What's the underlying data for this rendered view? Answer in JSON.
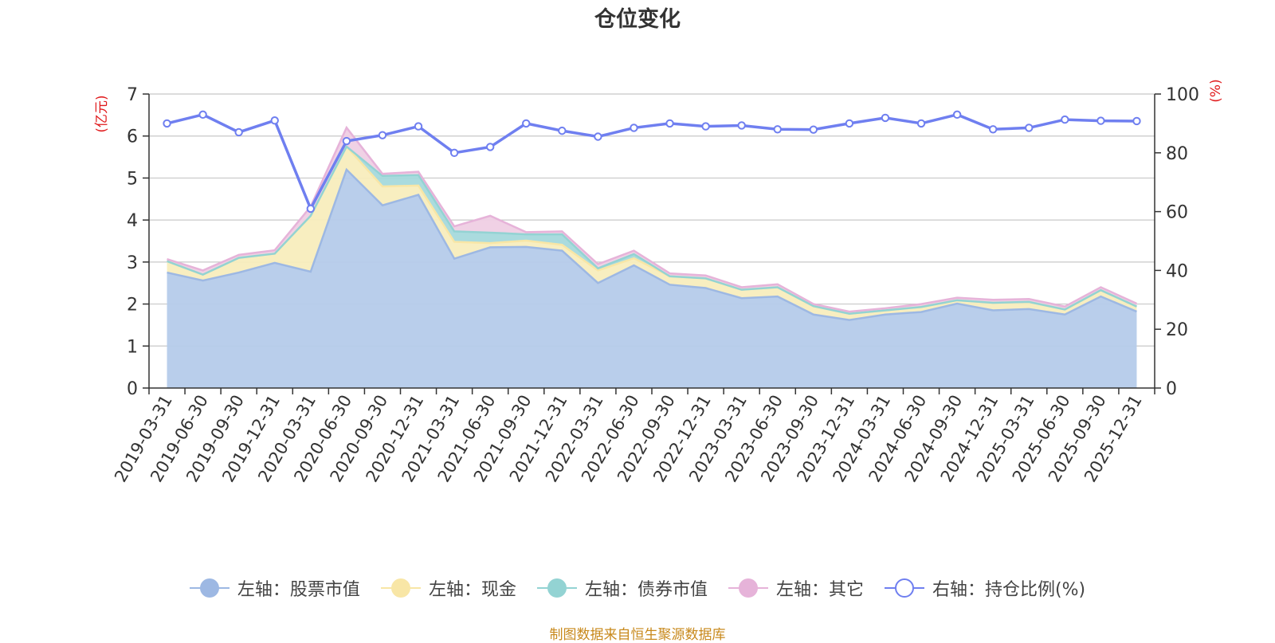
{
  "title": "仓位变化",
  "source_note": "制图数据来自恒生聚源数据库",
  "legend": [
    {
      "label": "左轴：股票市值",
      "color": "#9db8e3",
      "style": "filled"
    },
    {
      "label": "左轴：现金",
      "color": "#f8e6a6",
      "style": "filled"
    },
    {
      "label": "左轴：债券市值",
      "color": "#93d3d3",
      "style": "filled"
    },
    {
      "label": "左轴：其它",
      "color": "#e6b3d9",
      "style": "filled"
    },
    {
      "label": "右轴：持仓比例(%)",
      "color": "#6f7ff0",
      "style": "hollow"
    }
  ],
  "chart_data": {
    "type": "area",
    "title": "仓位变化",
    "left_axis": {
      "label": "(亿元)",
      "min": 0,
      "max": 7,
      "ticks": [
        0,
        1,
        2,
        3,
        4,
        5,
        6,
        7
      ]
    },
    "right_axis": {
      "label": "(%)",
      "min": 0,
      "max": 100,
      "ticks": [
        0,
        20,
        40,
        60,
        80,
        100
      ]
    },
    "categories": [
      "2019-03-31",
      "2019-06-30",
      "2019-09-30",
      "2019-12-31",
      "2020-03-31",
      "2020-06-30",
      "2020-09-30",
      "2020-12-31",
      "2021-03-31",
      "2021-06-30",
      "2021-09-30",
      "2021-12-31",
      "2022-03-31",
      "2022-06-30",
      "2022-09-30",
      "2022-12-31",
      "2023-03-31",
      "2023-06-30",
      "2023-09-30",
      "2023-12-31",
      "2024-03-31",
      "2024-06-30",
      "2024-09-30",
      "2024-12-31",
      "2025-03-31",
      "2025-06-30",
      "2025-09-30",
      "2025-12-31"
    ],
    "series": [
      {
        "name": "左轴：股票市值",
        "axis": "left",
        "stack": true,
        "color": "#b5cbea",
        "line_color": "#9db8e3",
        "values": [
          2.75,
          2.56,
          2.75,
          2.98,
          2.77,
          5.2,
          4.35,
          4.6,
          3.08,
          3.35,
          3.36,
          3.27,
          2.5,
          2.92,
          2.46,
          2.38,
          2.14,
          2.18,
          1.75,
          1.62,
          1.75,
          1.81,
          2.01,
          1.85,
          1.88,
          1.75,
          2.18,
          1.82
        ]
      },
      {
        "name": "左轴：现金",
        "axis": "left",
        "stack": true,
        "color": "#f8edbd",
        "line_color": "#f8e6a6",
        "values": [
          0.27,
          0.14,
          0.35,
          0.22,
          1.33,
          0.55,
          0.45,
          0.22,
          0.4,
          0.1,
          0.15,
          0.14,
          0.3,
          0.17,
          0.2,
          0.23,
          0.2,
          0.22,
          0.2,
          0.15,
          0.1,
          0.12,
          0.08,
          0.18,
          0.17,
          0.12,
          0.15,
          0.12
        ]
      },
      {
        "name": "左轴：债券市值",
        "axis": "left",
        "stack": true,
        "color": "#a5d9dc",
        "line_color": "#93d3d3",
        "values": [
          0,
          0,
          0,
          0,
          0,
          0,
          0.25,
          0.25,
          0.25,
          0.25,
          0.15,
          0.25,
          0.05,
          0.1,
          0,
          0,
          0,
          0,
          0,
          0,
          0,
          0,
          0,
          0,
          0,
          0,
          0,
          0
        ]
      },
      {
        "name": "左轴：其它",
        "axis": "left",
        "stack": true,
        "color": "#efcfe4",
        "line_color": "#e6b3d9",
        "values": [
          0.05,
          0.1,
          0.07,
          0.08,
          0.22,
          0.45,
          0.05,
          0.08,
          0.12,
          0.4,
          0.05,
          0.07,
          0.1,
          0.08,
          0.07,
          0.07,
          0.06,
          0.07,
          0.05,
          0.05,
          0.05,
          0.07,
          0.06,
          0.07,
          0.07,
          0.07,
          0.07,
          0.07
        ]
      },
      {
        "name": "右轴：持仓比例(%)",
        "axis": "right",
        "type": "line",
        "color": "#6f7ff0",
        "values": [
          90,
          93,
          87,
          91,
          61,
          84,
          86,
          89,
          80,
          82,
          90,
          87.5,
          85.5,
          88.5,
          90,
          89,
          89.3,
          88,
          87.9,
          90,
          91.9,
          90,
          93,
          88,
          88.5,
          91.3,
          90.9,
          90.8
        ]
      }
    ]
  }
}
